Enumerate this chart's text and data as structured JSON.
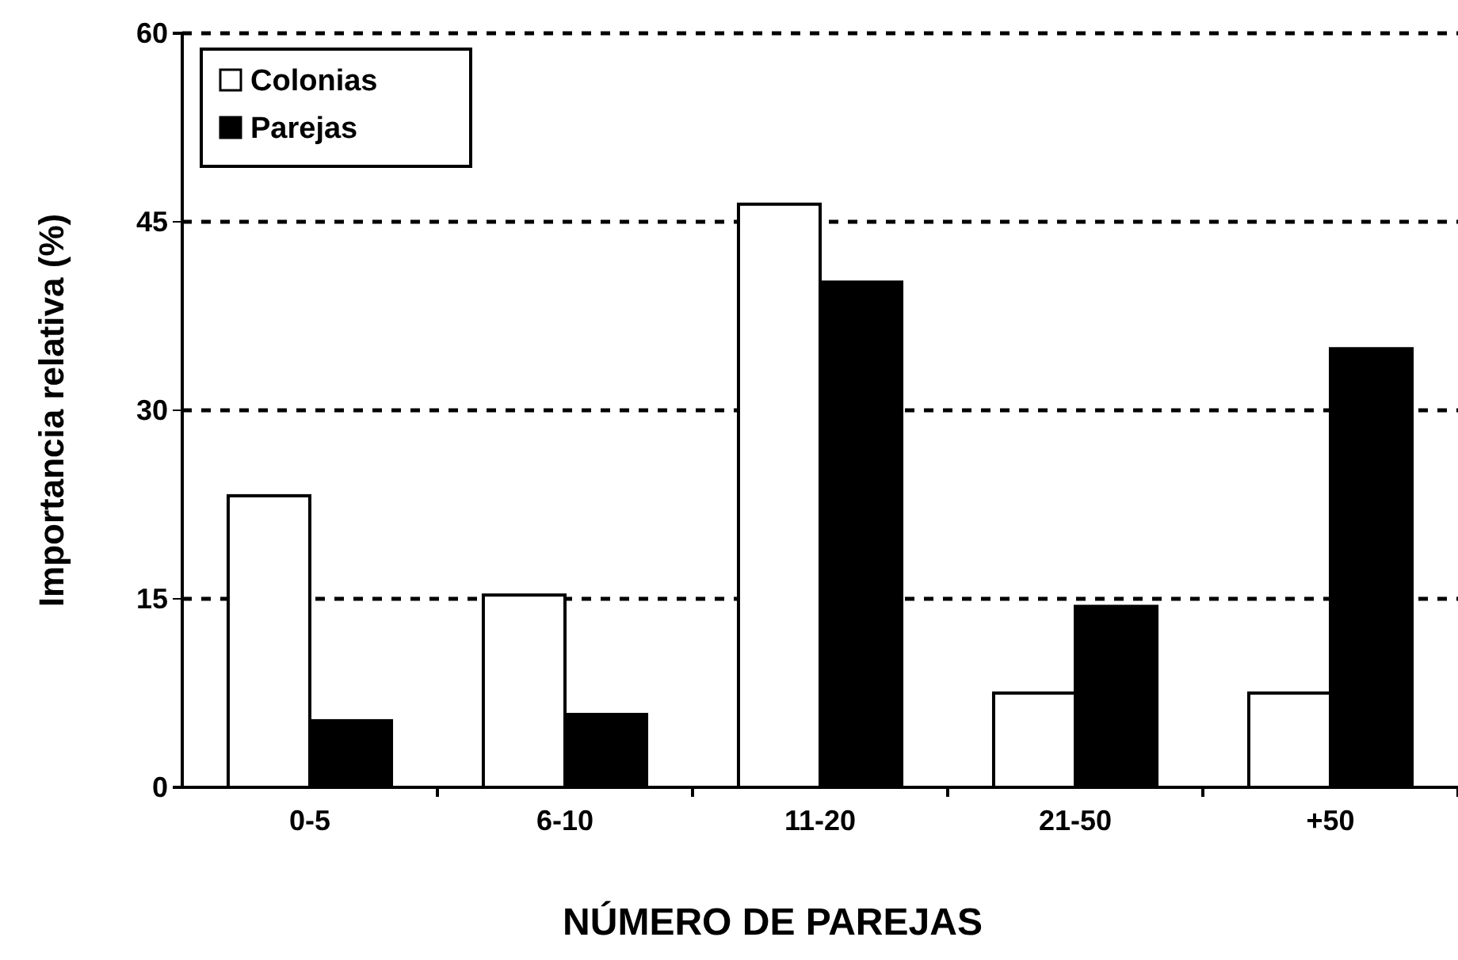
{
  "chart_data": {
    "type": "bar",
    "xlabel": "NÚMERO DE PAREJAS",
    "ylabel": "Importancia relativa (%)",
    "categories": [
      "0-5",
      "6-10",
      "11-20",
      "21-50",
      "+50"
    ],
    "series": [
      {
        "name": "Colonias",
        "color": "#ffffff",
        "values": [
          23.2,
          15.3,
          46.4,
          7.5,
          7.5
        ]
      },
      {
        "name": "Parejas",
        "color": "#000000",
        "values": [
          5.3,
          5.8,
          40.2,
          14.4,
          34.9
        ]
      }
    ],
    "ylim": [
      0,
      60
    ],
    "yticks": [
      0,
      15,
      30,
      45,
      60
    ],
    "grid": "y",
    "legend": "top left"
  }
}
